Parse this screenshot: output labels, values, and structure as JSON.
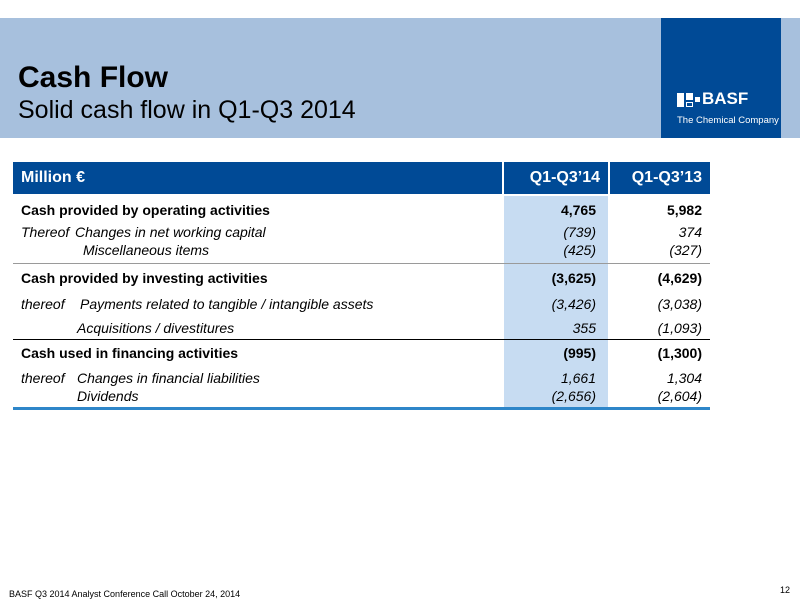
{
  "header": {
    "title": "Cash Flow",
    "subtitle": "Solid cash flow in Q1-Q3 2014"
  },
  "logo": {
    "name": "BASF",
    "tagline": "The Chemical Company"
  },
  "table": {
    "header": {
      "label": "Million €",
      "col1": "Q1-Q3’14",
      "col2": "Q1-Q3’13"
    },
    "operating": {
      "label": "Cash provided by operating activities",
      "v1": "4,765",
      "v2": "5,982",
      "thereof_prefix": "Thereof",
      "sub1_label": "Changes in net working capital",
      "sub1_v1": "(739)",
      "sub1_v2": "374",
      "sub2_label": "Miscellaneous items",
      "sub2_v1": "(425)",
      "sub2_v2": "(327)"
    },
    "investing": {
      "label": "Cash provided by investing activities",
      "v1": "(3,625)",
      "v2": "(4,629)",
      "thereof_prefix": "thereof",
      "sub1_label": "Payments related to tangible / intangible assets",
      "sub1_v1": "(3,426)",
      "sub1_v2": "(3,038)",
      "sub2_label": "Acquisitions / divestitures",
      "sub2_v1": "355",
      "sub2_v2": "(1,093)"
    },
    "financing": {
      "label": "Cash used in financing activities",
      "v1": "(995)",
      "v2": "(1,300)",
      "thereof_prefix": "thereof",
      "sub1_label": "Changes in financial liabilities",
      "sub1_v1": "1,661",
      "sub1_v2": "1,304",
      "sub2_label": "Dividends",
      "sub2_v1": "(2,656)",
      "sub2_v2": "(2,604)"
    }
  },
  "footer": {
    "text": "BASF Q3 2014 Analyst Conference Call October 24, 2014",
    "page_number": "12"
  }
}
